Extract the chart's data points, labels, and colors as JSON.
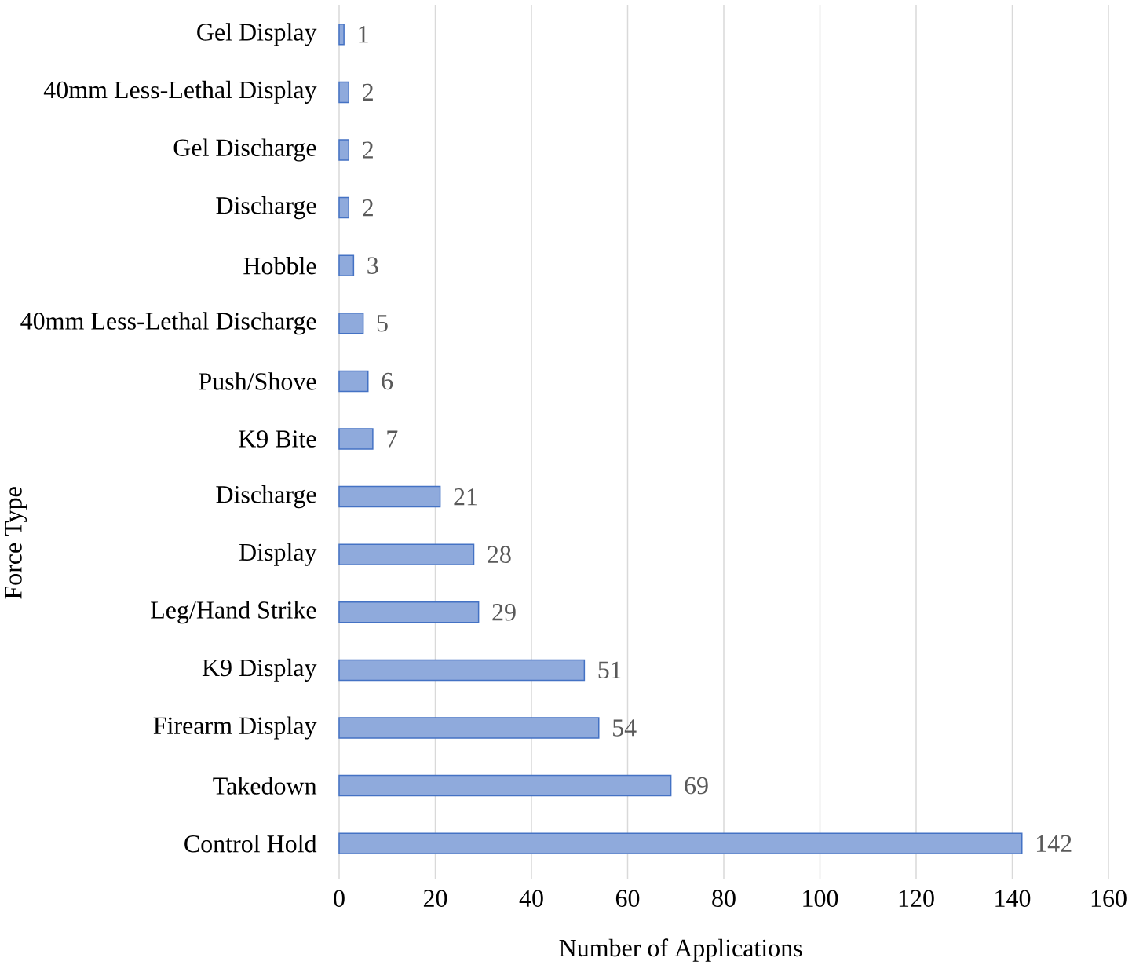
{
  "chart_data": {
    "type": "bar",
    "orientation": "horizontal",
    "categories": [
      "Gel Display",
      "40mm Less-Lethal Display",
      "Gel Discharge",
      "Discharge",
      "Hobble",
      "40mm Less-Lethal Discharge",
      "Push/Shove",
      "K9 Bite",
      "Discharge",
      "Display",
      "Leg/Hand Strike",
      "K9 Display",
      "Firearm Display",
      "Takedown",
      "Control Hold"
    ],
    "values": [
      1,
      2,
      2,
      2,
      3,
      5,
      6,
      7,
      21,
      28,
      29,
      51,
      54,
      69,
      142
    ],
    "color": "#8faadc",
    "xlim": [
      0,
      160
    ],
    "xticks": [
      0,
      20,
      40,
      60,
      80,
      100,
      120,
      140,
      160
    ],
    "grid": "x",
    "data_labels": true,
    "xlabel": "Number of Applications",
    "ylabel": "Force Type"
  }
}
